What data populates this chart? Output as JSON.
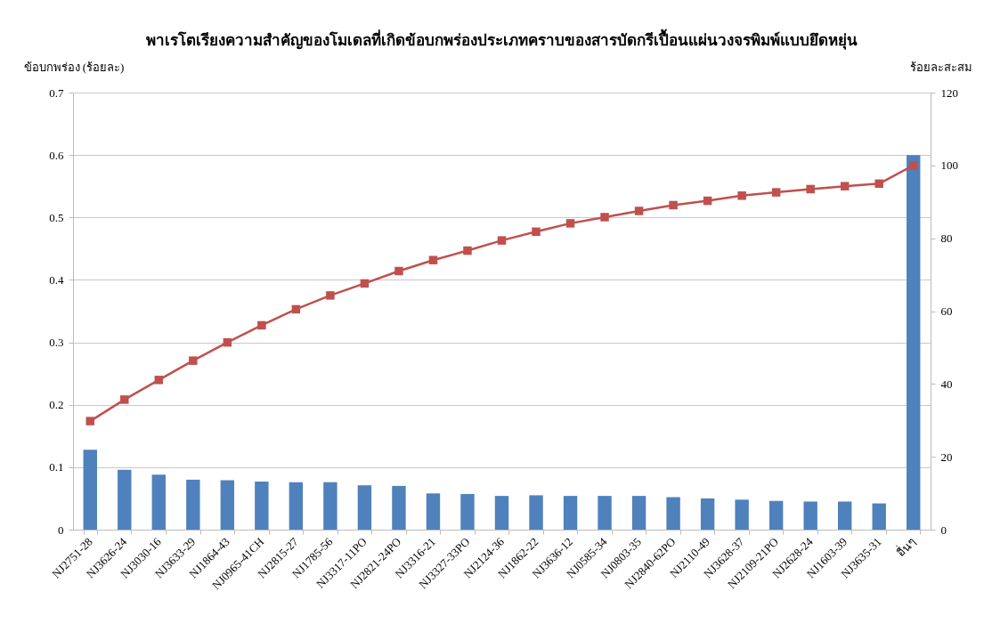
{
  "chart_data": {
    "type": "bar",
    "title": "พาเรโตเรียงความสำคัญของโมเดลที่เกิดข้อบกพร่องประเภทคราบของสารบัดกรีเปื้อนแผ่นวงจรพิมพ์แบบยึดหยุ่น",
    "ylabel": "ข้อบกพร่อง (ร้อยละ)",
    "y2label": "ร้อยละสะสม",
    "categories": [
      "NJ2751-28",
      "NJ3626-24",
      "NJ3030-16",
      "NJ3633-29",
      "NJ1864-43",
      "NJ0965-41CH",
      "NJ2815-27",
      "NJ1785-56",
      "NJ3317-11PO",
      "NJ2821-24PO",
      "NJ3316-21",
      "NJ3327-33PO",
      "NJ2124-36",
      "NJ1862-22",
      "NJ3636-12",
      "NJ0585-34",
      "NJ0803-35",
      "NJ2840-62PO",
      "NJ2110-49",
      "NJ3628-37",
      "NJ2109-21PO",
      "NJ2628-24",
      "NJ1603-39",
      "NJ3635-31",
      "อื่นๆ"
    ],
    "series": [
      {
        "color": "#4f81bd",
        "values": [
          0.128,
          0.096,
          0.088,
          0.08,
          0.079,
          0.077,
          0.076,
          0.076,
          0.071,
          0.07,
          0.058,
          0.057,
          0.054,
          0.055,
          0.054,
          0.054,
          0.054,
          0.052,
          0.05,
          0.048,
          0.046,
          0.045,
          0.045,
          0.042,
          0.6
        ]
      },
      {
        "type": "line",
        "axis": "y2",
        "color": "#c0504d",
        "marker": "square",
        "values": [
          29.8,
          35.7,
          41.1,
          46.4,
          51.4,
          56.1,
          60.5,
          64.3,
          67.6,
          71.0,
          74.0,
          76.6,
          79.4,
          81.8,
          84.1,
          85.8,
          87.5,
          89.1,
          90.3,
          91.7,
          92.6,
          93.5,
          94.3,
          95.0,
          100
        ]
      }
    ],
    "ylim": [
      0,
      0.7
    ],
    "yticks": [
      0,
      0.1,
      0.2,
      0.3,
      0.4,
      0.5,
      0.6,
      0.7
    ],
    "y2lim": [
      0,
      120
    ],
    "y2ticks": [
      0,
      20,
      40,
      60,
      80,
      100,
      120
    ],
    "grid": "y"
  }
}
